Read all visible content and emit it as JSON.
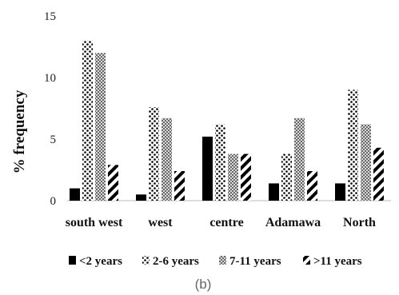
{
  "chart_data": {
    "type": "bar",
    "ylabel": "% frequency",
    "ylim": [
      0,
      15
    ],
    "yticks": [
      0,
      5,
      10,
      15
    ],
    "grid": false,
    "legend_position": "bottom",
    "categories": [
      "south west",
      "west",
      "centre",
      "Adamawa",
      "North"
    ],
    "series": [
      {
        "name": "<2 years",
        "pattern": "solid-black",
        "values": [
          1.0,
          0.5,
          5.2,
          1.4,
          1.4
        ]
      },
      {
        "name": "2-6 years",
        "pattern": "dots",
        "values": [
          13.0,
          7.6,
          6.2,
          3.8,
          9.0
        ]
      },
      {
        "name": "7-11 years",
        "pattern": "checker-gray",
        "values": [
          12.0,
          6.7,
          3.8,
          6.7,
          6.2
        ]
      },
      {
        "name": ">11 years",
        "pattern": "diagonal",
        "values": [
          2.9,
          2.4,
          3.8,
          2.4,
          4.3
        ]
      }
    ],
    "caption": "(b)"
  }
}
